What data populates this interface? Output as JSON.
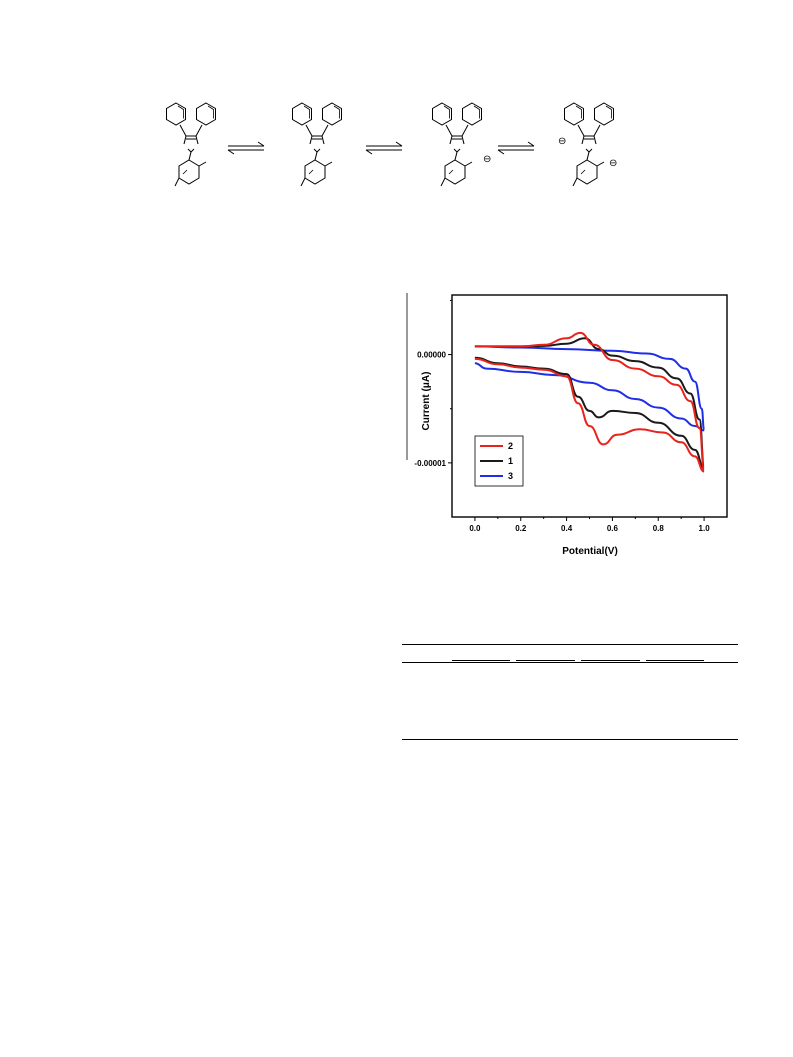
{
  "scheme": {
    "charges": [
      "⊖",
      "⊖",
      "⊖"
    ]
  },
  "chart_data": {
    "type": "line",
    "xlabel": "Potential(V)",
    "ylabel": "Current (μA)",
    "xlim": [
      -0.1,
      1.1
    ],
    "ylim": [
      -1.5e-05,
      5.5e-06
    ],
    "x_ticks": [
      "0.0",
      "0.2",
      "0.4",
      "0.6",
      "0.8",
      "1.0"
    ],
    "y_ticks": [
      "0.00000",
      "-0.00001"
    ],
    "legend_position": "bottom-left",
    "series": [
      {
        "name": "2",
        "color": "#e8231c",
        "upper": [
          [
            0.0,
            7.5e-07
          ],
          [
            0.2,
            7.5e-07
          ],
          [
            0.3,
            9e-07
          ],
          [
            0.4,
            1.5e-06
          ],
          [
            0.46,
            2e-06
          ],
          [
            0.52,
            9e-07
          ],
          [
            0.6,
            -5e-07
          ],
          [
            0.7,
            -1.3e-06
          ],
          [
            0.8,
            -2e-06
          ],
          [
            0.88,
            -2.8e-06
          ],
          [
            0.94,
            -4.3e-06
          ],
          [
            0.98,
            -6.8e-06
          ],
          [
            1.0,
            -1.07e-05
          ]
        ],
        "lower": [
          [
            0.0,
            -4e-07
          ],
          [
            0.1,
            -9e-07
          ],
          [
            0.2,
            -1.2e-06
          ],
          [
            0.3,
            -1.4e-06
          ],
          [
            0.4,
            -2e-06
          ],
          [
            0.45,
            -4.5e-06
          ],
          [
            0.5,
            -6.6e-06
          ],
          [
            0.56,
            -8.3e-06
          ],
          [
            0.62,
            -7.4e-06
          ],
          [
            0.72,
            -6.9e-06
          ],
          [
            0.82,
            -7.2e-06
          ],
          [
            0.9,
            -8.1e-06
          ],
          [
            0.96,
            -9.4e-06
          ],
          [
            1.0,
            -1.08e-05
          ]
        ]
      },
      {
        "name": "1",
        "color": "#1a1a1a",
        "upper": [
          [
            0.0,
            7.5e-07
          ],
          [
            0.2,
            7.5e-07
          ],
          [
            0.3,
            8e-07
          ],
          [
            0.4,
            1e-06
          ],
          [
            0.48,
            1.5e-06
          ],
          [
            0.54,
            5e-07
          ],
          [
            0.6,
            -1e-07
          ],
          [
            0.7,
            -6e-07
          ],
          [
            0.8,
            -1.2e-06
          ],
          [
            0.88,
            -2.2e-06
          ],
          [
            0.94,
            -3.6e-06
          ],
          [
            0.98,
            -6e-06
          ],
          [
            1.0,
            -1.03e-05
          ]
        ],
        "lower": [
          [
            0.0,
            -3e-07
          ],
          [
            0.1,
            -8e-07
          ],
          [
            0.2,
            -1.1e-06
          ],
          [
            0.3,
            -1.3e-06
          ],
          [
            0.4,
            -1.8e-06
          ],
          [
            0.45,
            -3.9e-06
          ],
          [
            0.5,
            -5.2e-06
          ],
          [
            0.54,
            -5.8e-06
          ],
          [
            0.6,
            -5.2e-06
          ],
          [
            0.7,
            -5.4e-06
          ],
          [
            0.8,
            -6.3e-06
          ],
          [
            0.9,
            -7.5e-06
          ],
          [
            0.96,
            -8.8e-06
          ],
          [
            1.0,
            -1.05e-05
          ]
        ]
      },
      {
        "name": "3",
        "color": "#1f2ee8",
        "upper": [
          [
            0.0,
            7.5e-07
          ],
          [
            0.2,
            6.5e-07
          ],
          [
            0.4,
            5e-07
          ],
          [
            0.6,
            3.5e-07
          ],
          [
            0.75,
            1e-07
          ],
          [
            0.85,
            -4e-07
          ],
          [
            0.92,
            -1.3e-06
          ],
          [
            0.96,
            -2.5e-06
          ],
          [
            0.99,
            -5e-06
          ],
          [
            1.0,
            -7e-06
          ]
        ],
        "lower": [
          [
            0.0,
            -8e-07
          ],
          [
            0.05,
            -1.3e-06
          ],
          [
            0.2,
            -1.6e-06
          ],
          [
            0.35,
            -1.9e-06
          ],
          [
            0.5,
            -2.6e-06
          ],
          [
            0.6,
            -3.3e-06
          ],
          [
            0.7,
            -4.1e-06
          ],
          [
            0.8,
            -4.9e-06
          ],
          [
            0.9,
            -5.9e-06
          ],
          [
            0.96,
            -6.6e-06
          ],
          [
            1.0,
            -7e-06
          ]
        ]
      }
    ]
  },
  "table": {}
}
